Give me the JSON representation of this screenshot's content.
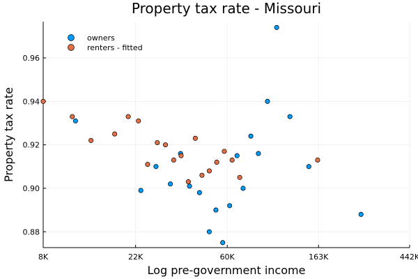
{
  "chart_data": {
    "type": "scatter",
    "title": "Property tax rate - Missouri",
    "xlabel": "Log pre-government income",
    "ylabel": "Property tax rate",
    "x_scale": "log",
    "x_ticks": [
      {
        "value": 8000,
        "label": "8K"
      },
      {
        "value": 22000,
        "label": "22K"
      },
      {
        "value": 60000,
        "label": "60K"
      },
      {
        "value": 163000,
        "label": "163K"
      },
      {
        "value": 442000,
        "label": "442K"
      }
    ],
    "y_ticks": [
      {
        "value": 0.88,
        "label": "0.88"
      },
      {
        "value": 0.9,
        "label": "0.90"
      },
      {
        "value": 0.92,
        "label": "0.92"
      },
      {
        "value": 0.94,
        "label": "0.94"
      },
      {
        "value": 0.96,
        "label": "0.96"
      }
    ],
    "xlim": [
      8000,
      442000
    ],
    "ylim": [
      0.8727,
      0.9767
    ],
    "grid": true,
    "legend_position": "top-left",
    "series": [
      {
        "name": "owners",
        "color": "#009AFA",
        "points": [
          {
            "x": 11400,
            "y": 0.931
          },
          {
            "x": 23300,
            "y": 0.899
          },
          {
            "x": 27500,
            "y": 0.91
          },
          {
            "x": 32200,
            "y": 0.902
          },
          {
            "x": 36000,
            "y": 0.916
          },
          {
            "x": 39700,
            "y": 0.901
          },
          {
            "x": 44300,
            "y": 0.898
          },
          {
            "x": 49300,
            "y": 0.88
          },
          {
            "x": 53000,
            "y": 0.89
          },
          {
            "x": 57100,
            "y": 0.875
          },
          {
            "x": 61600,
            "y": 0.892
          },
          {
            "x": 66800,
            "y": 0.915
          },
          {
            "x": 71400,
            "y": 0.9
          },
          {
            "x": 77700,
            "y": 0.924
          },
          {
            "x": 84400,
            "y": 0.916
          },
          {
            "x": 93200,
            "y": 0.94
          },
          {
            "x": 103100,
            "y": 0.974
          },
          {
            "x": 119200,
            "y": 0.933
          },
          {
            "x": 146600,
            "y": 0.91
          },
          {
            "x": 259600,
            "y": 0.888
          }
        ]
      },
      {
        "name": "renters - fitted",
        "color": "#E26F46",
        "points": [
          {
            "x": 8000,
            "y": 0.94
          },
          {
            "x": 11000,
            "y": 0.933
          },
          {
            "x": 13500,
            "y": 0.922
          },
          {
            "x": 17500,
            "y": 0.925
          },
          {
            "x": 20300,
            "y": 0.933
          },
          {
            "x": 22700,
            "y": 0.931
          },
          {
            "x": 25100,
            "y": 0.911
          },
          {
            "x": 27900,
            "y": 0.921
          },
          {
            "x": 30500,
            "y": 0.92
          },
          {
            "x": 33400,
            "y": 0.913
          },
          {
            "x": 36200,
            "y": 0.915
          },
          {
            "x": 39200,
            "y": 0.903
          },
          {
            "x": 42300,
            "y": 0.923
          },
          {
            "x": 45500,
            "y": 0.906
          },
          {
            "x": 49300,
            "y": 0.908
          },
          {
            "x": 53500,
            "y": 0.912
          },
          {
            "x": 58100,
            "y": 0.917
          },
          {
            "x": 63300,
            "y": 0.913
          },
          {
            "x": 68800,
            "y": 0.905
          },
          {
            "x": 161400,
            "y": 0.913
          }
        ]
      }
    ]
  }
}
